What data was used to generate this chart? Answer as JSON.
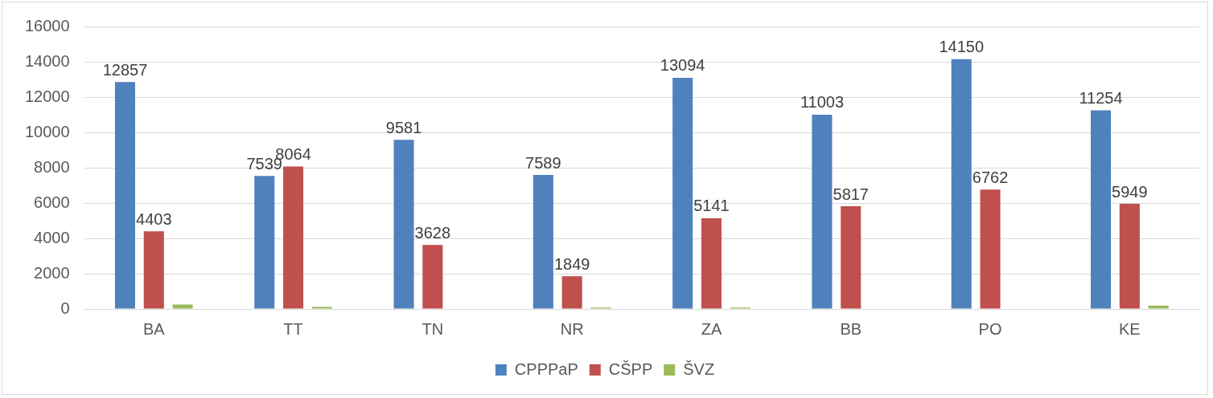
{
  "chart_data": {
    "type": "bar",
    "categories": [
      "BA",
      "TT",
      "TN",
      "NR",
      "ZA",
      "BB",
      "PO",
      "KE"
    ],
    "series": [
      {
        "name": "CPPPaP",
        "color": "#4f81bd",
        "values": [
          12857,
          7539,
          9581,
          7589,
          13094,
          11003,
          14150,
          11254
        ],
        "value_labels": [
          "12857",
          "7539",
          "9581",
          "7589",
          "13094",
          "11003",
          "14150",
          "11254"
        ]
      },
      {
        "name": "CŠPP",
        "color": "#c0504d",
        "values": [
          4403,
          8064,
          3628,
          1849,
          5141,
          5817,
          6762,
          5949
        ],
        "value_labels": [
          "4403",
          "8064",
          "3628",
          "1849",
          "5141",
          "5817",
          "6762",
          "5949"
        ]
      },
      {
        "name": "ŠVZ",
        "color": "#9bbb59",
        "values": [
          250,
          120,
          null,
          80,
          80,
          null,
          null,
          190
        ]
      }
    ],
    "ylim": [
      0,
      16000
    ],
    "yticks": [
      0,
      2000,
      4000,
      6000,
      8000,
      10000,
      12000,
      14000,
      16000
    ],
    "grid": "y",
    "legend": "bottom"
  }
}
